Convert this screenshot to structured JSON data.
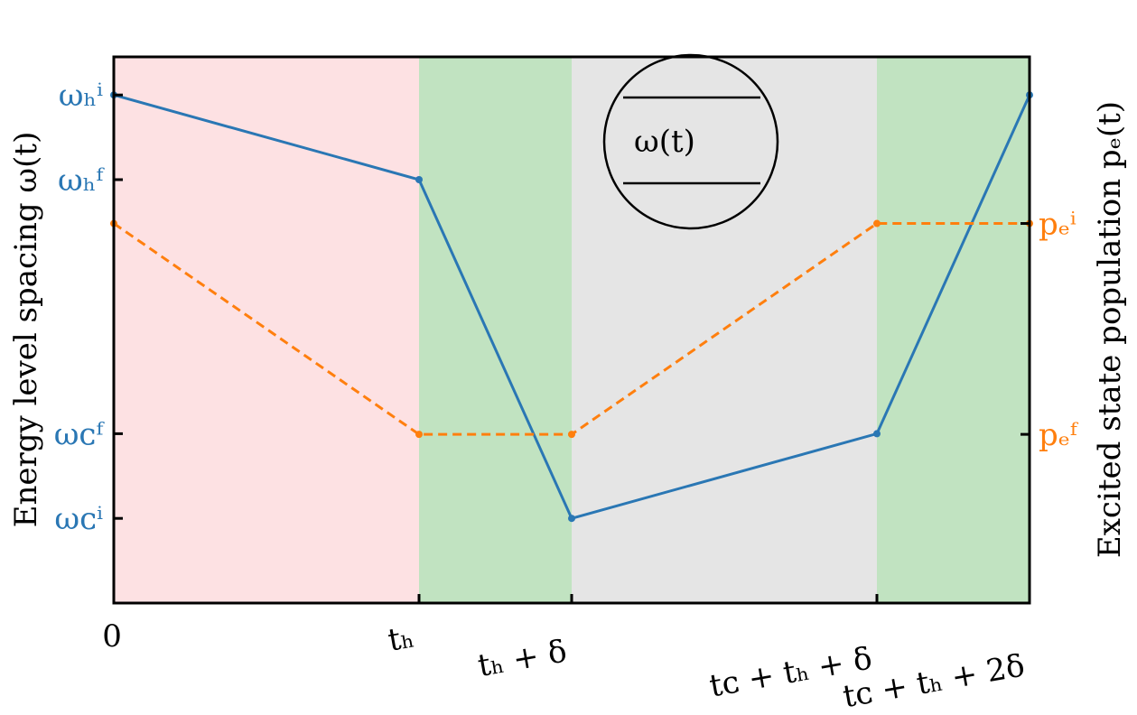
{
  "chart_data": {
    "type": "line",
    "ylabel": "Energy level spacing ω(t)",
    "y2label": "Excited state population pₑ(t)",
    "annotation": "ω(t)",
    "x": [
      0,
      2,
      3,
      5,
      6
    ],
    "xlim": [
      0,
      6
    ],
    "ylim": [
      0,
      6.45
    ],
    "y2lim": [
      0.2,
      2.79
    ],
    "xticks": [
      {
        "value": 0,
        "label": "0"
      },
      {
        "value": 2,
        "label": "tₕ"
      },
      {
        "value": 3,
        "label": "tₕ + δ"
      },
      {
        "value": 5,
        "label": "tᴄ + tₕ + δ"
      },
      {
        "value": 6,
        "label": "tᴄ + tₕ + 2δ"
      }
    ],
    "yticks": [
      {
        "value": 1,
        "label": "ωᴄⁱ"
      },
      {
        "value": 2,
        "label": "ωᴄᶠ"
      },
      {
        "value": 5,
        "label": "ωₕᶠ"
      },
      {
        "value": 6,
        "label": "ωₕⁱ"
      }
    ],
    "y2ticks": [
      {
        "value": 1,
        "label": "pₑᶠ"
      },
      {
        "value": 2,
        "label": "pₑⁱ"
      }
    ],
    "regions": [
      {
        "x": [
          0,
          2
        ],
        "color": "#fde1e3"
      },
      {
        "x": [
          2,
          3
        ],
        "color": "#c1e3c1"
      },
      {
        "x": [
          3,
          5
        ],
        "color": "#e5e5e5"
      },
      {
        "x": [
          5,
          6
        ],
        "color": "#c1e3c1"
      }
    ],
    "series": [
      {
        "color": "#2a77b4",
        "values": [
          6,
          5,
          1,
          2,
          6
        ],
        "dash": false
      },
      {
        "color": "#ff7f0e",
        "values": [
          2,
          1,
          1,
          2,
          2
        ],
        "axis": "y2",
        "dash": true
      }
    ]
  }
}
